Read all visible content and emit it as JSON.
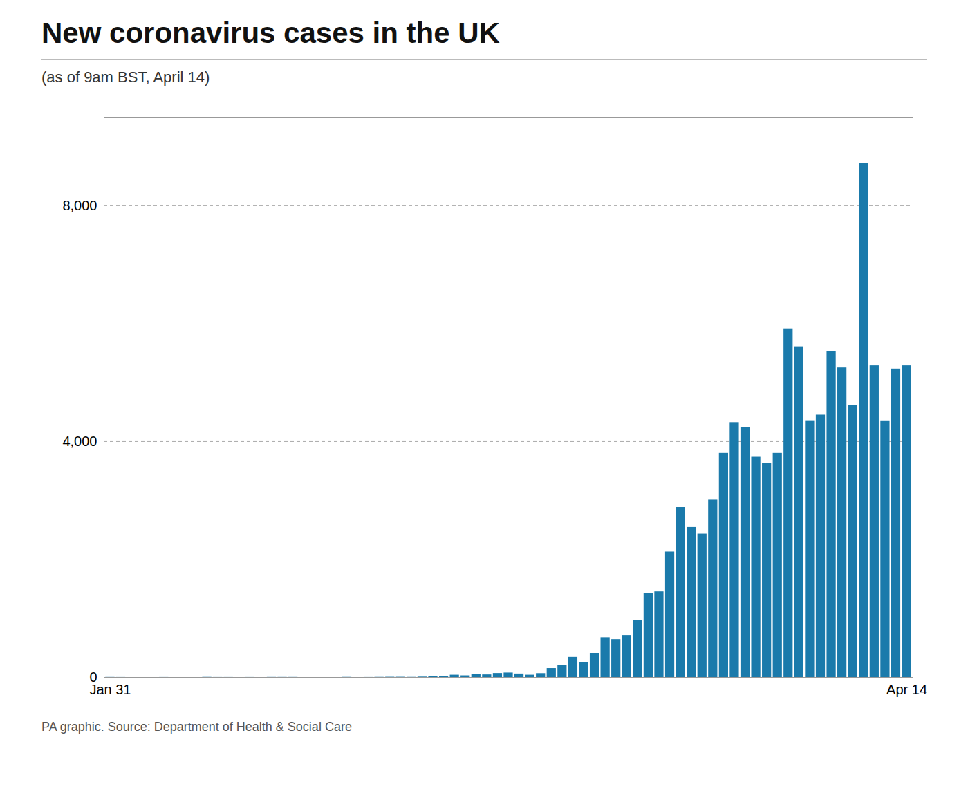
{
  "chart_data": {
    "type": "bar",
    "title": "New coronavirus cases in the UK",
    "subtitle": "(as of 9am BST, April 14)",
    "source": "PA graphic. Source: Department of Health & Social Care",
    "categories": [
      "Jan 31",
      null,
      null,
      null,
      null,
      null,
      null,
      null,
      null,
      null,
      null,
      null,
      null,
      null,
      null,
      null,
      null,
      null,
      null,
      null,
      null,
      null,
      null,
      null,
      null,
      null,
      null,
      null,
      null,
      null,
      null,
      null,
      null,
      null,
      null,
      null,
      null,
      null,
      null,
      null,
      null,
      null,
      null,
      null,
      null,
      null,
      null,
      null,
      null,
      null,
      null,
      null,
      null,
      null,
      null,
      null,
      null,
      null,
      null,
      null,
      null,
      null,
      null,
      null,
      null,
      null,
      null,
      null,
      null,
      null,
      null,
      null,
      null,
      null,
      "Apr 14"
    ],
    "values": [
      2,
      1,
      0,
      0,
      0,
      1,
      0,
      0,
      0,
      3,
      1,
      1,
      0,
      1,
      0,
      2,
      2,
      2,
      0,
      0,
      0,
      0,
      3,
      0,
      1,
      3,
      5,
      5,
      3,
      8,
      13,
      15,
      40,
      29,
      48,
      45,
      69,
      77,
      60,
      40,
      67,
      152,
      208,
      342,
      251,
      407,
      676,
      643,
      714,
      967,
      1427,
      1452,
      2129,
      2885,
      2546,
      2433,
      3009,
      3802,
      4324,
      4244,
      3735,
      3634,
      3802,
      5903,
      5599,
      4344,
      4451,
      5525,
      5252,
      4615,
      8719,
      5288,
      4342,
      5233,
      5288
    ],
    "color": "#1a7aab",
    "ylim": [
      0,
      9500
    ],
    "yticks": [
      0,
      {
        "value": 4000,
        "label": "4,000"
      },
      {
        "value": 8000,
        "label": "8,000"
      }
    ],
    "grid": true
  }
}
